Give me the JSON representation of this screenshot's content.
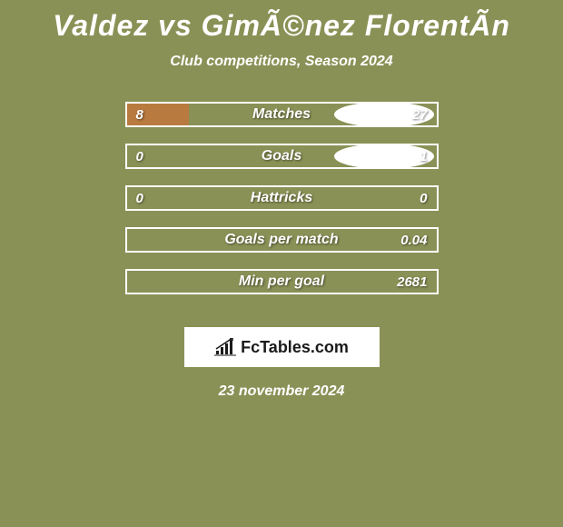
{
  "title": "Valdez vs GimÃ©nez FlorentÃ­n",
  "subtitle": "Club competitions, Season 2024",
  "background_color": "#8a9156",
  "bar_border_color": "#ffffff",
  "bar_fill_color": "#b87a3f",
  "ellipse_color": "#ffffff",
  "text_color": "#ffffff",
  "stats": [
    {
      "label": "Matches",
      "left_value": "8",
      "right_value": "27",
      "left_fill_pct": 20,
      "right_fill_pct": 0,
      "show_left_ellipse": true,
      "show_right_ellipse": true
    },
    {
      "label": "Goals",
      "left_value": "0",
      "right_value": "1",
      "left_fill_pct": 0,
      "right_fill_pct": 0,
      "show_left_ellipse": true,
      "show_right_ellipse": true
    },
    {
      "label": "Hattricks",
      "left_value": "0",
      "right_value": "0",
      "left_fill_pct": 0,
      "right_fill_pct": 0,
      "show_left_ellipse": false,
      "show_right_ellipse": false
    },
    {
      "label": "Goals per match",
      "left_value": "",
      "right_value": "0.04",
      "left_fill_pct": 0,
      "right_fill_pct": 0,
      "show_left_ellipse": false,
      "show_right_ellipse": false
    },
    {
      "label": "Min per goal",
      "left_value": "",
      "right_value": "2681",
      "left_fill_pct": 0,
      "right_fill_pct": 0,
      "show_left_ellipse": false,
      "show_right_ellipse": false
    }
  ],
  "logo": {
    "text": "FcTables.com",
    "background": "#ffffff",
    "text_color": "#1a1a1a"
  },
  "date": "23 november 2024"
}
